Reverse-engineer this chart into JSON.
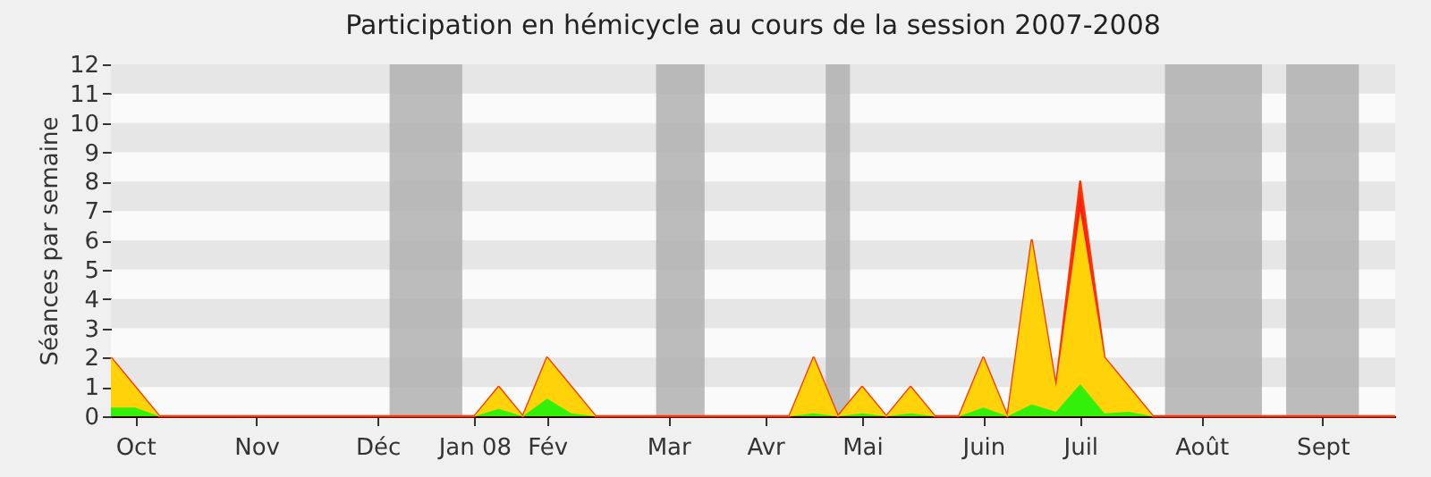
{
  "chart_data": {
    "type": "area",
    "title": "Participation en hémicycle au cours de la session 2007-2008",
    "ylabel": "Séances par semaine",
    "x": [
      "2007-09-24",
      "2007-10-01",
      "2007-10-08",
      "2007-10-15",
      "2007-10-22",
      "2007-10-29",
      "2007-11-05",
      "2007-11-12",
      "2007-11-19",
      "2007-11-26",
      "2007-12-03",
      "2007-12-10",
      "2007-12-17",
      "2007-12-24",
      "2007-12-31",
      "2008-01-07",
      "2008-01-14",
      "2008-01-21",
      "2008-01-28",
      "2008-02-04",
      "2008-02-11",
      "2008-02-18",
      "2008-02-25",
      "2008-03-03",
      "2008-03-10",
      "2008-03-17",
      "2008-03-24",
      "2008-03-31",
      "2008-04-07",
      "2008-04-14",
      "2008-04-21",
      "2008-04-28",
      "2008-05-05",
      "2008-05-12",
      "2008-05-19",
      "2008-05-26",
      "2008-06-02",
      "2008-06-09",
      "2008-06-16",
      "2008-06-23",
      "2008-06-30",
      "2008-07-07",
      "2008-07-14",
      "2008-07-21",
      "2008-07-28",
      "2008-08-04",
      "2008-08-11",
      "2008-08-18",
      "2008-08-25",
      "2008-09-01",
      "2008-09-08",
      "2008-09-15",
      "2008-09-22",
      "2008-09-29"
    ],
    "series": [
      {
        "color": "#ff1a1a",
        "values": [
          2,
          1,
          0,
          0,
          0,
          0,
          0,
          0,
          0,
          0,
          0,
          0,
          0,
          0,
          0,
          0,
          1,
          0,
          2,
          1,
          0,
          0,
          0,
          0,
          0,
          0,
          0,
          0,
          0,
          2,
          0,
          1,
          0,
          1,
          0,
          0,
          2,
          0,
          6,
          1,
          8,
          2,
          1,
          0,
          0,
          0,
          0,
          0,
          0,
          0,
          0,
          0,
          0,
          0
        ]
      },
      {
        "color": "#ffd20a",
        "values": [
          2,
          1,
          0,
          0,
          0,
          0,
          0,
          0,
          0,
          0,
          0,
          0,
          0,
          0,
          0,
          0,
          1,
          0,
          2,
          1,
          0,
          0,
          0,
          0,
          0,
          0,
          0,
          0,
          0,
          2,
          0,
          1,
          0,
          1,
          0,
          0,
          2,
          0,
          6,
          1,
          7,
          2,
          1,
          0,
          0,
          0,
          0,
          0,
          0,
          0,
          0,
          0,
          0,
          0
        ]
      },
      {
        "color": "#33f00a",
        "values": [
          0.3,
          0.3,
          0,
          0,
          0,
          0,
          0,
          0,
          0,
          0,
          0,
          0,
          0,
          0,
          0,
          0,
          0.25,
          0,
          0.6,
          0.1,
          0,
          0,
          0,
          0,
          0,
          0,
          0,
          0,
          0,
          0.1,
          0,
          0.1,
          0,
          0.1,
          0,
          0,
          0.3,
          0,
          0.4,
          0.15,
          1.1,
          0.1,
          0.15,
          0,
          0,
          0,
          0,
          0,
          0,
          0,
          0,
          0,
          0,
          0
        ]
      }
    ],
    "xlim": [
      "2007-09-24",
      "2008-09-29"
    ],
    "xticks": [
      {
        "value": "2007-10-01",
        "label": "Oct"
      },
      {
        "value": "2007-11-05",
        "label": "Nov"
      },
      {
        "value": "2007-12-10",
        "label": "Déc"
      },
      {
        "value": "2008-01-07",
        "label": "Jan 08"
      },
      {
        "value": "2008-01-28",
        "label": "Fév"
      },
      {
        "value": "2008-03-03",
        "label": "Mar"
      },
      {
        "value": "2008-03-31",
        "label": "Avr"
      },
      {
        "value": "2008-04-28",
        "label": "Mai"
      },
      {
        "value": "2008-06-02",
        "label": "Juin"
      },
      {
        "value": "2008-06-30",
        "label": "Juil"
      },
      {
        "value": "2008-08-04",
        "label": "Août"
      },
      {
        "value": "2008-09-08",
        "label": "Sept"
      }
    ],
    "ylim": [
      0,
      12
    ],
    "yticks": [
      0,
      1,
      2,
      3,
      4,
      5,
      6,
      7,
      8,
      9,
      10,
      11,
      12
    ],
    "bands": [
      {
        "axis": "x",
        "from": "2007-12-13T12:00",
        "to": "2008-01-03T12:00",
        "color": "#b0b0b0"
      },
      {
        "axis": "x",
        "from": "2008-02-28T12:00",
        "to": "2008-03-13T12:00",
        "color": "#b0b0b0"
      },
      {
        "axis": "x",
        "from": "2008-04-17T12:00",
        "to": "2008-04-24T12:00",
        "color": "#b0b0b0"
      },
      {
        "axis": "x",
        "from": "2008-07-24T12:00",
        "to": "2008-08-21T12:00",
        "color": "#b0b0b0"
      },
      {
        "axis": "x",
        "from": "2008-08-28T12:00",
        "to": "2008-09-18T12:00",
        "color": "#b0b0b0"
      }
    ]
  }
}
